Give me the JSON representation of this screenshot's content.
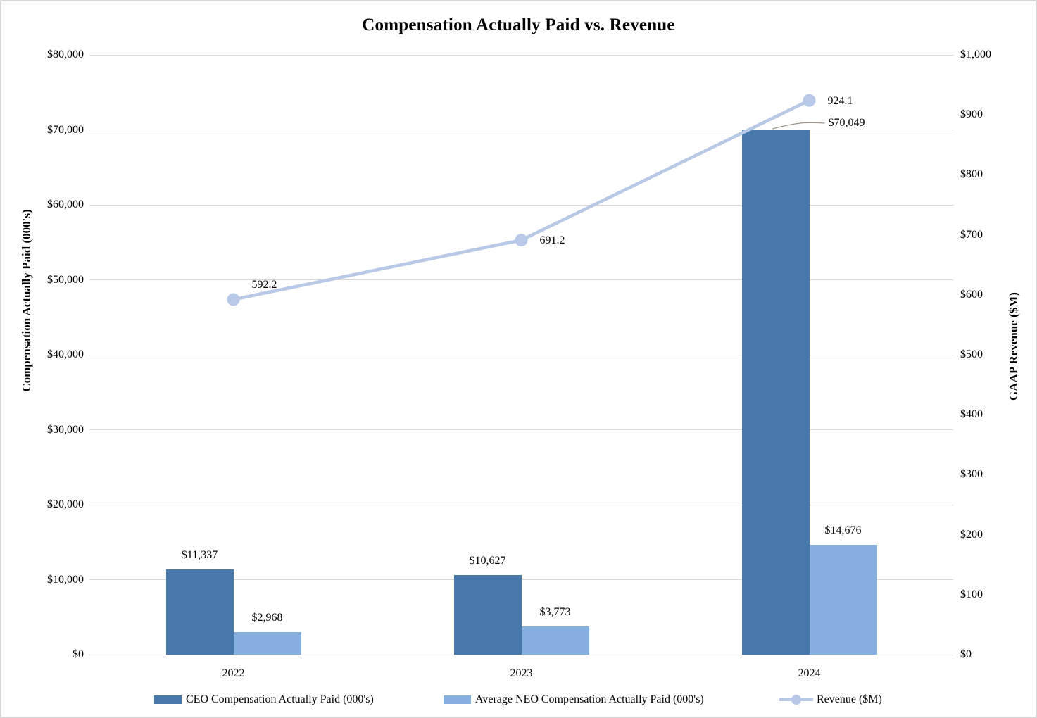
{
  "chart_data": {
    "type": "bar",
    "title": "Compensation Actually Paid vs. Revenue",
    "categories": [
      "2022",
      "2023",
      "2024"
    ],
    "series": [
      {
        "name": "CEO Compensation Actually Paid (000's)",
        "kind": "bar",
        "axis": "left",
        "color": "#4678ab",
        "values": [
          11337,
          10627,
          70049
        ],
        "labels": [
          "$11,337",
          "$10,627",
          "$70,049"
        ]
      },
      {
        "name": "Average NEO Compensation Actually Paid (000's)",
        "kind": "bar",
        "axis": "left",
        "color": "#86aede",
        "values": [
          2968,
          3773,
          14676
        ],
        "labels": [
          "$2,968",
          "$3,773",
          "$14,676"
        ]
      },
      {
        "name": "Revenue ($M)",
        "kind": "line",
        "axis": "right",
        "color": "#b7c9e6",
        "values": [
          592.2,
          691.2,
          924.1
        ],
        "labels": [
          "592.2",
          "691.2",
          "924.1"
        ]
      }
    ],
    "left_axis": {
      "label": "Compensation Actually Paid (000's)",
      "min": 0,
      "max": 80000,
      "ticks": [
        "$80,000",
        "$70,000",
        "$60,000",
        "$50,000",
        "$40,000",
        "$30,000",
        "$20,000",
        "$10,000",
        "$0"
      ]
    },
    "right_axis": {
      "label": "GAAP Revenue ($M)",
      "min": 0,
      "max": 1000,
      "ticks": [
        "$1,000",
        "$900",
        "$800",
        "$700",
        "$600",
        "$500",
        "$400",
        "$300",
        "$200",
        "$100",
        "$0"
      ]
    },
    "grid": "horizontal-on",
    "legend_position": "bottom",
    "colors": {
      "gridline": "#d9d9d9",
      "callout_leader": "#9c9489",
      "text": "#000000"
    }
  }
}
